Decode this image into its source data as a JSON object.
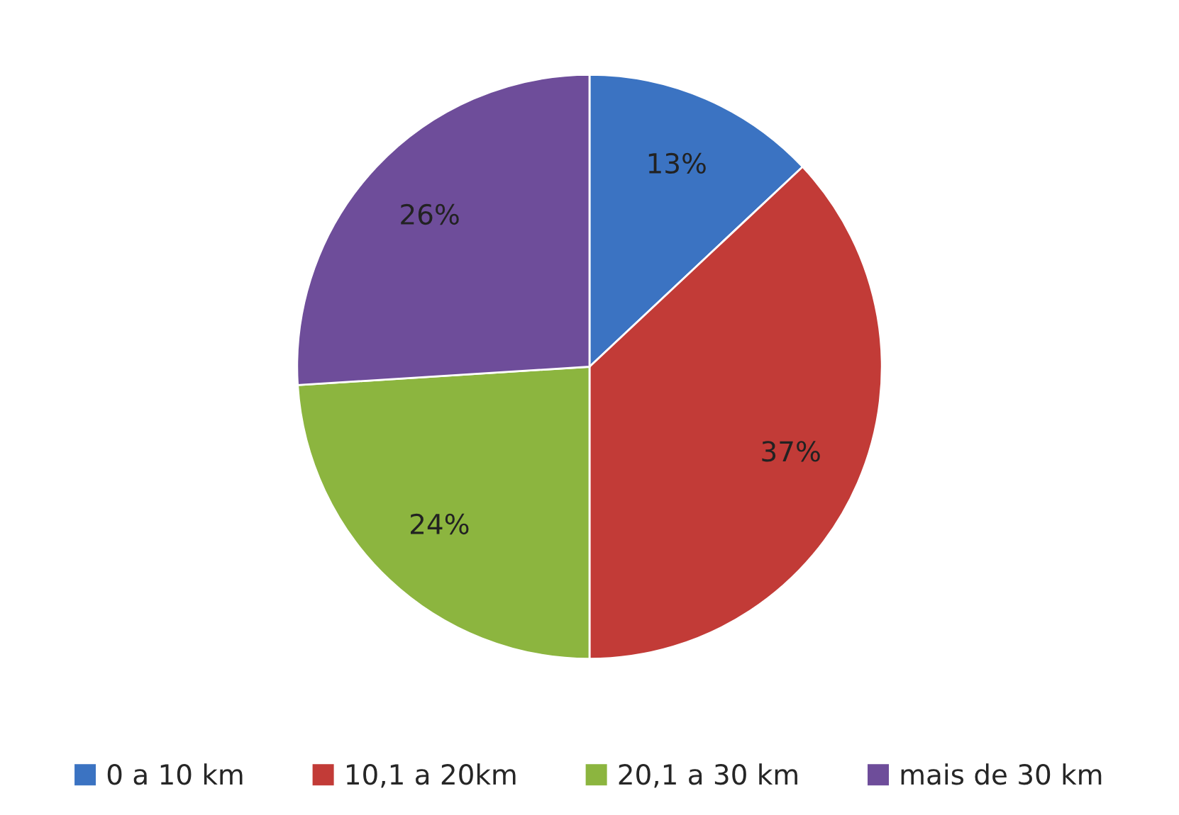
{
  "chart_data": {
    "type": "pie",
    "categories": [
      "0 a 10 km",
      "10,1 a 20km",
      "20,1 a 30 km",
      "mais de 30 km"
    ],
    "values": [
      13,
      37,
      24,
      26
    ],
    "colors": [
      "#3b73c2",
      "#c23b37",
      "#8cb53f",
      "#6e4d9a"
    ],
    "value_labels": [
      "13%",
      "37%",
      "24%",
      "26%"
    ],
    "legend": "bottom"
  }
}
